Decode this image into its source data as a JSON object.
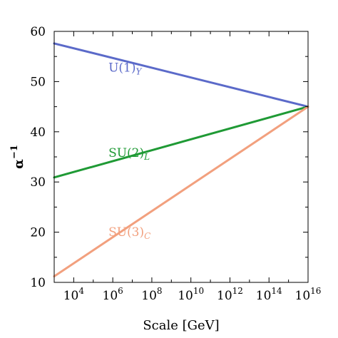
{
  "chart_data": {
    "type": "line",
    "xlabel": "Scale [GeV]",
    "ylabel_base": "α",
    "ylabel_sup": "−1",
    "xscale": "log",
    "xlim": [
      1000,
      10000000000000000
    ],
    "ylim": [
      10,
      60
    ],
    "yticks": [
      "10",
      "20",
      "30",
      "40",
      "50",
      "60"
    ],
    "yticks_values": [
      10,
      20,
      30,
      40,
      50,
      60
    ],
    "xticks": [
      {
        "value": 10000,
        "base": "10",
        "exp": "4"
      },
      {
        "value": 1000000,
        "base": "10",
        "exp": "6"
      },
      {
        "value": 100000000,
        "base": "10",
        "exp": "8"
      },
      {
        "value": 10000000000,
        "base": "10",
        "exp": "10"
      },
      {
        "value": 1000000000000,
        "base": "10",
        "exp": "12"
      },
      {
        "value": 100000000000000,
        "base": "10",
        "exp": "14"
      },
      {
        "value": 10000000000000000,
        "base": "10",
        "exp": "16"
      }
    ],
    "grid": false,
    "series": [
      {
        "name_base": "U(1)",
        "name_sub": "Y",
        "color": "#5b6ac9",
        "x": [
          1000,
          10000000000000000
        ],
        "y": [
          57.6,
          45.0
        ],
        "label_at": [
          600000,
          52
        ]
      },
      {
        "name_base": "SU(2)",
        "name_sub": "L",
        "color": "#1f9a35",
        "x": [
          1000,
          10000000000000000
        ],
        "y": [
          30.9,
          45.0
        ],
        "label_at": [
          600000,
          35
        ]
      },
      {
        "name_base": "SU(3)",
        "name_sub": "C",
        "color": "#f2a07e",
        "x": [
          1000,
          10000000000000000
        ],
        "y": [
          11.2,
          45.0
        ],
        "label_at": [
          600000,
          19.2
        ]
      }
    ]
  }
}
